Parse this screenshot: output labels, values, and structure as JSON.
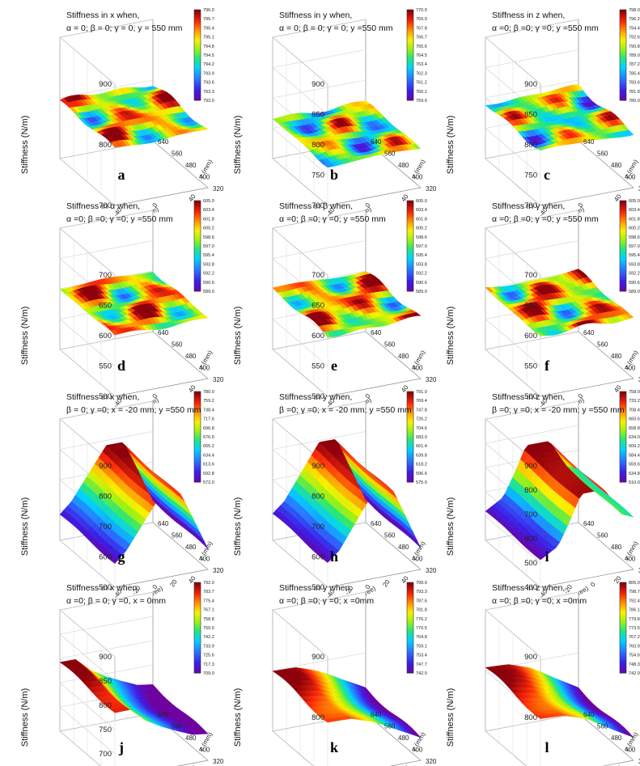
{
  "figure": {
    "panels": [
      {
        "label": "a",
        "title1": "Stiffness in x when,",
        "title2": "α = 0; β = 0; γ = 0; y = 550 mm"
      },
      {
        "label": "b",
        "title1": "Stiffness in y when,",
        "title2": "α = 0; β = 0; γ = 0; y =550 mm"
      },
      {
        "label": "c",
        "title1": "Stiffness in z when,",
        "title2": "α =0; β =0; γ =0; y =550 mm"
      },
      {
        "label": "d",
        "title1": "Stiffness in α when,",
        "title2": "α =0; β =0; γ =0; y =550 mm"
      },
      {
        "label": "e",
        "title1": "Stiffness in β when,",
        "title2": "α =0; β =0; γ =0; y =550 mm"
      },
      {
        "label": "f",
        "title1": "Stiffness in γ when,",
        "title2": "α =0; β =0; γ =0; y =550 mm"
      },
      {
        "label": "g",
        "title1": "Stiffness in x when,",
        "title2": "β = 0; γ =0; x = -20 mm; y =550 mm"
      },
      {
        "label": "h",
        "title1": "Stiffness in y when,",
        "title2": "β =0; γ =0; x = -20 mm; y =550 mm"
      },
      {
        "label": "i",
        "title1": "Stiffness in z when,",
        "title2": "β =0; γ =0; x = -20 mm; y =550 mm"
      },
      {
        "label": "j",
        "title1": "Stiffness in x when,",
        "title2": "α =0; β = 0; γ =0, x = 0mm"
      },
      {
        "label": "k",
        "title1": "Stiffness in y when,",
        "title2": "α =0; β =0; γ =0; x =0mm"
      },
      {
        "label": "l",
        "title1": "Stiffness in z when,",
        "title2": "α =0; β =0; γ =0; x =0mm"
      }
    ]
  },
  "chart_data": [
    {
      "type": "surface",
      "panel": "a",
      "zlabel": "Stiffness (N/m)",
      "xlabel": "x (mm)",
      "ylabel": "z (mm)",
      "zticks": [
        "700",
        "800",
        "900"
      ],
      "xticks": [
        "-40",
        "0",
        "40"
      ],
      "yticks": [
        "320",
        "400",
        "480",
        "560",
        "640"
      ],
      "colorbar": [
        "796.0",
        "795.7",
        "795.4",
        "795.1",
        "794.8",
        "794.5",
        "794.2",
        "793.9",
        "793.6",
        "793.3",
        "793.0"
      ],
      "zlim": [
        700,
        900
      ],
      "surface_level": 795,
      "pattern": "patchy"
    },
    {
      "type": "surface",
      "panel": "b",
      "zlabel": "Stiffness (N/m)",
      "xlabel": "x (mm)",
      "ylabel": "z (mm)",
      "zticks": [
        "700",
        "750",
        "800",
        "850",
        "900"
      ],
      "xticks": [
        "-40",
        "0",
        "40"
      ],
      "yticks": [
        "320",
        "400",
        "480",
        "560",
        "640"
      ],
      "colorbar": [
        "770.0",
        "769.0",
        "767.8",
        "766.7",
        "765.6",
        "764.5",
        "763.4",
        "762.3",
        "761.2",
        "760.1",
        "759.0"
      ],
      "zlim": [
        700,
        900
      ],
      "surface_level": 765,
      "pattern": "patchy"
    },
    {
      "type": "surface",
      "panel": "c",
      "zlabel": "Stiffness (N/m)",
      "xlabel": "x (mm)",
      "ylabel": "z (mm)",
      "zticks": [
        "700",
        "750",
        "800",
        "850",
        "900"
      ],
      "xticks": [
        "-40",
        "0",
        "40"
      ],
      "yticks": [
        "320",
        "400",
        "480",
        "560",
        "640"
      ],
      "colorbar": [
        "798.0",
        "796.2",
        "794.4",
        "792.6",
        "790.8",
        "789.0",
        "787.2",
        "785.4",
        "783.6",
        "781.8",
        "780.0"
      ],
      "zlim": [
        700,
        900
      ],
      "surface_level": 790,
      "pattern": "patchy"
    },
    {
      "type": "surface",
      "panel": "d",
      "zlabel": "Stiffness (N/m)",
      "xlabel": "x (mm)",
      "ylabel": "z (mm)",
      "zticks": [
        "500",
        "550",
        "600",
        "650",
        "700"
      ],
      "xticks": [
        "-40",
        "0",
        "40"
      ],
      "yticks": [
        "320",
        "400",
        "480",
        "560",
        "640"
      ],
      "colorbar": [
        "605.0",
        "603.4",
        "601.8",
        "600.2",
        "598.6",
        "597.0",
        "595.4",
        "593.8",
        "592.2",
        "590.6",
        "589.0"
      ],
      "zlim": [
        500,
        700
      ],
      "surface_level": 600,
      "pattern": "patchy"
    },
    {
      "type": "surface",
      "panel": "e",
      "zlabel": "Stiffness (N/m)",
      "xlabel": "x (mm)",
      "ylabel": "z (mm)",
      "zticks": [
        "500",
        "550",
        "600",
        "650",
        "700"
      ],
      "xticks": [
        "-40",
        "0",
        "40"
      ],
      "yticks": [
        "320",
        "400",
        "480",
        "560",
        "640"
      ],
      "colorbar": [
        "605.0",
        "603.4",
        "601.8",
        "600.2",
        "598.6",
        "597.0",
        "595.4",
        "593.8",
        "592.2",
        "590.6",
        "589.0"
      ],
      "zlim": [
        500,
        700
      ],
      "surface_level": 600,
      "pattern": "patchy"
    },
    {
      "type": "surface",
      "panel": "f",
      "zlabel": "Stiffness (N/m)",
      "xlabel": "x (mm)",
      "ylabel": "z (mm)",
      "zticks": [
        "500",
        "550",
        "600",
        "650",
        "700"
      ],
      "xticks": [
        "-40",
        "0",
        "40"
      ],
      "yticks": [
        "320",
        "400",
        "480",
        "560",
        "640"
      ],
      "colorbar": [
        "605.0",
        "603.4",
        "601.8",
        "600.2",
        "598.6",
        "597.0",
        "595.4",
        "593.8",
        "592.2",
        "590.6",
        "589.0"
      ],
      "zlim": [
        500,
        700
      ],
      "surface_level": 600,
      "pattern": "patchy"
    },
    {
      "type": "surface",
      "panel": "g",
      "zlabel": "Stiffness (N/m)",
      "xlabel": "α (degree)",
      "ylabel": "z (mm)",
      "zticks": [
        "500",
        "600",
        "700",
        "800",
        "900"
      ],
      "xticks": [
        "-40",
        "-20",
        "0",
        "20",
        "40"
      ],
      "yticks": [
        "320",
        "400",
        "480",
        "560",
        "640"
      ],
      "colorbar": [
        "780.0",
        "759.2",
        "738.4",
        "717.6",
        "696.8",
        "676.0",
        "655.2",
        "634.4",
        "613.6",
        "592.8",
        "572.0"
      ],
      "zlim": [
        500,
        900
      ],
      "x_profile": [
        [
          -40,
          585
        ],
        [
          -30,
          620
        ],
        [
          -15,
          700
        ],
        [
          0,
          780
        ],
        [
          15,
          780
        ],
        [
          25,
          700
        ],
        [
          40,
          572
        ]
      ]
    },
    {
      "type": "surface",
      "panel": "h",
      "zlabel": "Stiffness (N/m)",
      "xlabel": "α (degree)",
      "ylabel": "z (mm)",
      "zticks": [
        "500",
        "600",
        "700",
        "800",
        "900"
      ],
      "xticks": [
        "-40",
        "-20",
        "0",
        "20",
        "40"
      ],
      "yticks": [
        "320",
        "400",
        "480",
        "560",
        "640"
      ],
      "colorbar": [
        "791.0",
        "769.4",
        "747.8",
        "726.2",
        "704.6",
        "683.0",
        "661.4",
        "639.8",
        "618.2",
        "596.6",
        "575.0"
      ],
      "zlim": [
        500,
        900
      ],
      "x_profile": [
        [
          -40,
          588
        ],
        [
          -30,
          620
        ],
        [
          -15,
          705
        ],
        [
          0,
          790
        ],
        [
          15,
          790
        ],
        [
          25,
          705
        ],
        [
          40,
          575
        ]
      ]
    },
    {
      "type": "surface",
      "panel": "i",
      "zlabel": "Stiffness (N/m)",
      "xlabel": "α (degree)",
      "ylabel": "z (mm)",
      "zticks": [
        "400",
        "500",
        "600",
        "700",
        "800",
        "900"
      ],
      "xticks": [
        "-40",
        "-20",
        "0",
        "20"
      ],
      "yticks": [
        "320",
        "400",
        "480",
        "560",
        "640"
      ],
      "colorbar": [
        "758.0",
        "733.2",
        "708.4",
        "683.6",
        "658.8",
        "634.0",
        "609.2",
        "584.4",
        "559.6",
        "534.8",
        "510.0"
      ],
      "zlim": [
        400,
        900
      ],
      "x_profile": [
        [
          -40,
          520
        ],
        [
          -25,
          560
        ],
        [
          -15,
          650
        ],
        [
          -5,
          755
        ],
        [
          15,
          755
        ],
        [
          30,
          640
        ],
        [
          40,
          620
        ]
      ]
    },
    {
      "type": "surface",
      "panel": "j",
      "zlabel": "Stiffness (N/m)",
      "xlabel": "y (mm)",
      "ylabel": "z (mm)",
      "zticks": [
        "650",
        "700",
        "750",
        "800",
        "850",
        "900"
      ],
      "xticks": [
        "520",
        "560",
        "600"
      ],
      "yticks": [
        "320",
        "400",
        "480",
        "560",
        "640"
      ],
      "colorbar": [
        "792.0",
        "783.7",
        "775.4",
        "767.1",
        "758.8",
        "750.5",
        "742.2",
        "733.9",
        "725.6",
        "717.3",
        "709.0"
      ],
      "zlim": [
        650,
        900
      ],
      "x_profile": [
        [
          500,
          792
        ],
        [
          520,
          790
        ],
        [
          540,
          760
        ],
        [
          560,
          740
        ],
        [
          580,
          725
        ],
        [
          600,
          712
        ],
        [
          620,
          709
        ]
      ]
    },
    {
      "type": "surface",
      "panel": "k",
      "zlabel": "Stiffness (N/m)",
      "xlabel": "y (mm)",
      "ylabel": "z (mm)",
      "zticks": [
        "700",
        "800",
        "900"
      ],
      "xticks": [
        "520",
        "560",
        "600"
      ],
      "yticks": [
        "320",
        "400",
        "480",
        "560",
        "640"
      ],
      "colorbar": [
        "799.0",
        "793.3",
        "787.6",
        "781.8",
        "776.2",
        "770.5",
        "764.8",
        "759.1",
        "753.4",
        "747.7",
        "742.0"
      ],
      "zlim": [
        700,
        900
      ],
      "x_profile": [
        [
          500,
          799
        ],
        [
          530,
          795
        ],
        [
          560,
          780
        ],
        [
          590,
          760
        ],
        [
          620,
          742
        ]
      ]
    },
    {
      "type": "surface",
      "panel": "l",
      "zlabel": "Stiffness (N/m)",
      "xlabel": "y (mm)",
      "ylabel": "z (mm)",
      "zticks": [
        "700",
        "800",
        "900"
      ],
      "xticks": [
        "520",
        "560",
        "600"
      ],
      "yticks": [
        "320",
        "400",
        "480",
        "560",
        "640"
      ],
      "colorbar": [
        "805.0",
        "798.7",
        "792.4",
        "786.1",
        "779.8",
        "773.5",
        "767.2",
        "760.9",
        "754.6",
        "748.3",
        "742.0"
      ],
      "zlim": [
        700,
        900
      ],
      "x_profile": [
        [
          500,
          805
        ],
        [
          530,
          800
        ],
        [
          560,
          785
        ],
        [
          590,
          762
        ],
        [
          620,
          742
        ]
      ]
    }
  ]
}
